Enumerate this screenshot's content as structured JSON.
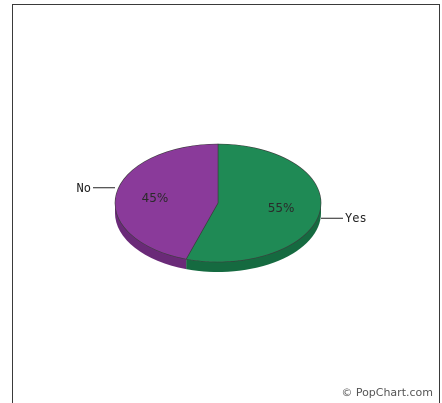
{
  "chart_data": {
    "type": "pie",
    "style": "3d",
    "slices": [
      {
        "label": "Yes",
        "value": 55,
        "value_label": "55%",
        "color": "#1f8a55",
        "side_color": "#156a40"
      },
      {
        "label": "No",
        "value": 45,
        "value_label": "45%",
        "color": "#8a3a9a",
        "side_color": "#6a2a78"
      }
    ],
    "title": "",
    "legend": "none"
  },
  "footer": {
    "credit": "© PopChart.com"
  }
}
